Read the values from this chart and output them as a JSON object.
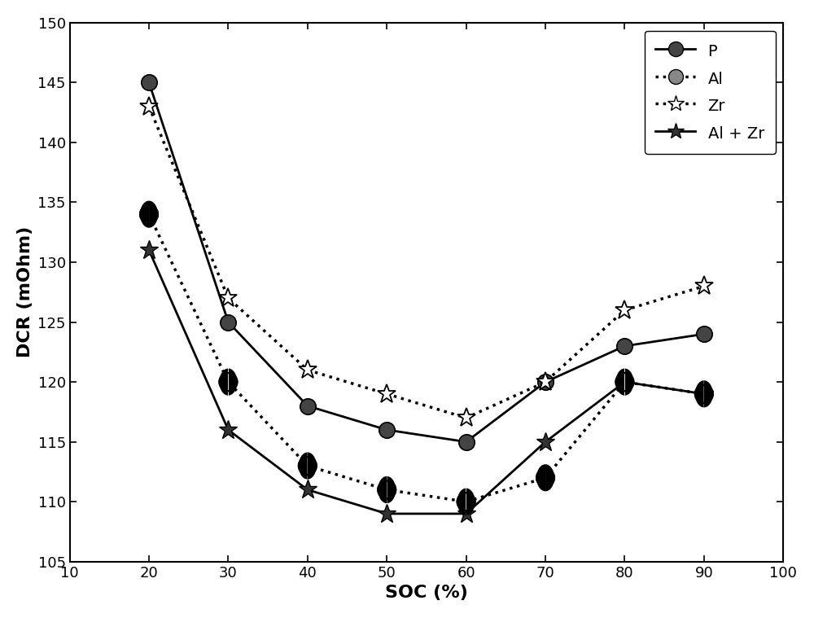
{
  "soc": [
    20,
    30,
    40,
    50,
    60,
    70,
    80,
    90
  ],
  "P": [
    145,
    125,
    118,
    116,
    115,
    120,
    123,
    124
  ],
  "Al": [
    134,
    120,
    113,
    111,
    110,
    112,
    120,
    119
  ],
  "Zr": [
    143,
    127,
    121,
    119,
    117,
    120,
    126,
    128
  ],
  "AlZr": [
    131,
    116,
    111,
    109,
    109,
    115,
    120,
    119
  ],
  "xlabel": "SOC (%)",
  "ylabel": "DCR (mOhm)",
  "xlim": [
    10,
    100
  ],
  "ylim": [
    105,
    150
  ],
  "xticks": [
    10,
    20,
    30,
    40,
    50,
    60,
    70,
    80,
    90,
    100
  ],
  "yticks": [
    105,
    110,
    115,
    120,
    125,
    130,
    135,
    140,
    145,
    150
  ]
}
